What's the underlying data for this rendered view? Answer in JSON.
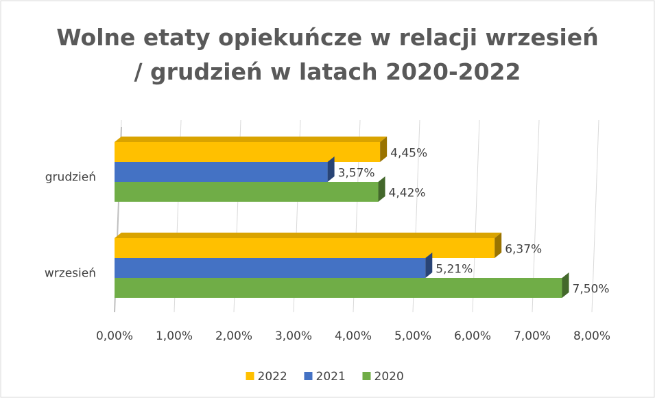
{
  "chart_data": {
    "type": "bar3d_horizontal",
    "title": "Wolne etaty opiekuńcze w relacji wrzesień / grudzień w latach 2020-2022",
    "categories": [
      "grudzień",
      "wrzesień"
    ],
    "series": [
      {
        "name": "2022",
        "color": "#ffc000",
        "values": [
          4.45,
          6.37
        ],
        "value_labels": [
          "4,45%",
          "6,37%"
        ]
      },
      {
        "name": "2021",
        "color": "#4472c4",
        "values": [
          3.57,
          5.21
        ],
        "value_labels": [
          "3,57%",
          "5,21%"
        ]
      },
      {
        "name": "2020",
        "color": "#70ad47",
        "values": [
          4.42,
          7.5
        ],
        "value_labels": [
          "4,42%",
          "7,50%"
        ]
      }
    ],
    "xlim": [
      0,
      8
    ],
    "xticks": [
      {
        "value": 0,
        "label": "0,00%"
      },
      {
        "value": 1,
        "label": "1,00%"
      },
      {
        "value": 2,
        "label": "2,00%"
      },
      {
        "value": 3,
        "label": "3,00%"
      },
      {
        "value": 4,
        "label": "4,00%"
      },
      {
        "value": 5,
        "label": "5,00%"
      },
      {
        "value": 6,
        "label": "6,00%"
      },
      {
        "value": 7,
        "label": "7,00%"
      },
      {
        "value": 8,
        "label": "8,00%"
      }
    ],
    "grid": true,
    "legend": "bottom"
  }
}
